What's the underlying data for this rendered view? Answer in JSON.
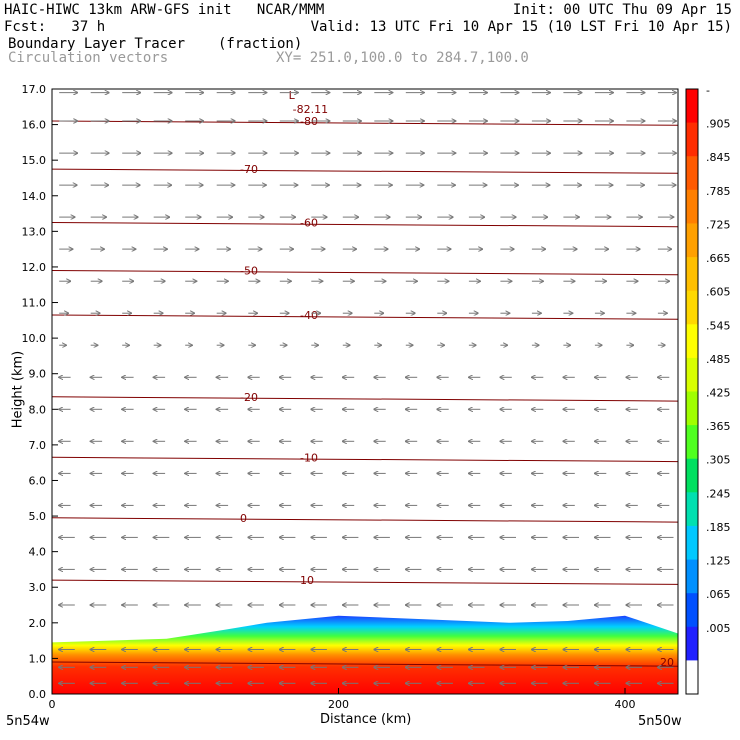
{
  "header": {
    "line1_left": "HAIC-HIWC 13km ARW-GFS init   NCAR/MMM",
    "line1_right": "Init: 00 UTC Thu 09 Apr 15",
    "line2_left": "Fcst:   37 h",
    "line2_right": "Valid: 13 UTC Fri 10 Apr 15 (10 LST Fri 10 Apr 15)",
    "line3_left": "Boundary Layer Tracer",
    "line3_mid": "(fraction)",
    "line4_left": "Circulation vectors",
    "line4_mid": "XY= 251.0,100.0 to 284.7,100.0"
  },
  "chart_data": {
    "type": "heatmap",
    "title": "Boundary Layer Tracer",
    "units": "(fraction)",
    "xlabel": "Distance (km)",
    "ylabel": "Height (km)",
    "xlim": [
      0,
      437
    ],
    "ylim": [
      0,
      17
    ],
    "x_ticks": [
      "0",
      "200",
      "400"
    ],
    "x_tick_values": [
      0,
      200,
      400
    ],
    "x_end_labels": {
      "left": "5n54w",
      "right": "5n50w"
    },
    "y_ticks": [
      "0.0",
      "1.0",
      "2.0",
      "3.0",
      "4.0",
      "5.0",
      "6.0",
      "7.0",
      "8.0",
      "9.0",
      "10.0",
      "11.0",
      "12.0",
      "13.0",
      "14.0",
      "15.0",
      "16.0",
      "17.0"
    ],
    "y_tick_values": [
      0,
      1,
      2,
      3,
      4,
      5,
      6,
      7,
      8,
      9,
      10,
      11,
      12,
      13,
      14,
      15,
      16,
      17
    ],
    "colorbar": {
      "labels": [
        "-",
        ".905",
        ".845",
        ".785",
        ".725",
        ".665",
        ".605",
        ".545",
        ".485",
        ".425",
        ".365",
        ".305",
        ".245",
        ".185",
        ".125",
        ".065",
        ".005"
      ],
      "colors": [
        "#ff0000",
        "#ff2d00",
        "#ff5a00",
        "#ff7f00",
        "#ffa000",
        "#ffbf00",
        "#ffd800",
        "#ffff00",
        "#d8ff00",
        "#a0ff00",
        "#50ff20",
        "#00e060",
        "#00e0b0",
        "#00c8ff",
        "#0090ff",
        "#0050ff",
        "#2020ff",
        "#ffffff"
      ]
    },
    "temperature_contours": [
      {
        "label": "20",
        "height": 0.9
      },
      {
        "label": "10",
        "height": 3.2
      },
      {
        "label": "0",
        "height": 4.95
      },
      {
        "label": "-10",
        "height": 6.65
      },
      {
        "label": "-20",
        "height": 8.35
      },
      {
        "label": "-40",
        "height": 10.65
      },
      {
        "label": "-50",
        "height": 11.9
      },
      {
        "label": "-60",
        "height": 13.25
      },
      {
        "label": "-70",
        "height": 14.75
      },
      {
        "label": "-80",
        "height": 16.1
      }
    ],
    "minimum_marker": {
      "label": "L",
      "value": "-82.11",
      "x": 175,
      "height": 16.6
    },
    "tracer_top_km": [
      {
        "x": 0,
        "h": 1.45
      },
      {
        "x": 40,
        "h": 1.5
      },
      {
        "x": 80,
        "h": 1.55
      },
      {
        "x": 120,
        "h": 1.8
      },
      {
        "x": 150,
        "h": 2.0
      },
      {
        "x": 200,
        "h": 2.2
      },
      {
        "x": 260,
        "h": 2.1
      },
      {
        "x": 320,
        "h": 2.0
      },
      {
        "x": 360,
        "h": 2.05
      },
      {
        "x": 400,
        "h": 2.2
      },
      {
        "x": 437,
        "h": 1.7
      }
    ],
    "vector_rows_km": [
      0.3,
      0.75,
      1.25,
      2.5,
      3.5,
      4.4,
      5.3,
      6.2,
      7.1,
      8.0,
      8.9,
      9.8,
      10.7,
      11.6,
      12.5,
      13.4,
      14.3,
      15.2,
      16.1,
      16.9
    ],
    "vector_u_sign_by_height": [
      {
        "below_km": 9.5,
        "direction": "westward"
      },
      {
        "below_km": 17,
        "direction": "eastward"
      }
    ]
  }
}
